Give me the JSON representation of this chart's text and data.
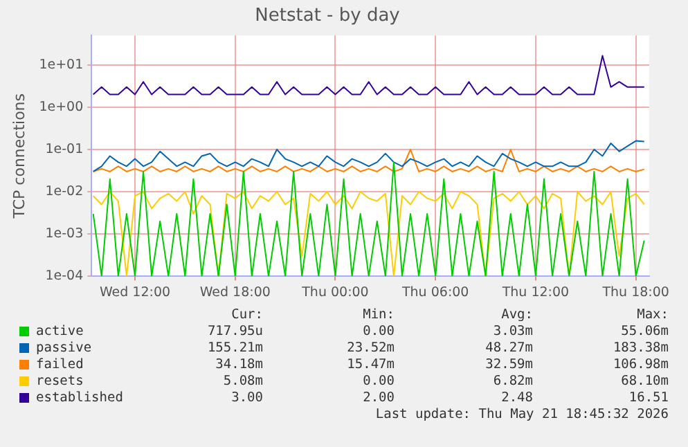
{
  "chart_data": {
    "type": "line",
    "title": "Netstat - by day",
    "ylabel": "TCP connections",
    "log": "y",
    "grid": true,
    "legend": "bottom",
    "xlim": [
      "2026-05-20T09:24",
      "2026-05-21T18:48"
    ],
    "xticks": [
      {
        "value": "2026-05-20T12:00",
        "label": "Wed 12:00"
      },
      {
        "value": "2026-05-20T18:00",
        "label": "Wed 18:00"
      },
      {
        "value": "2026-05-21T00:00",
        "label": "Thu 00:00"
      },
      {
        "value": "2026-05-21T06:00",
        "label": "Thu 06:00"
      },
      {
        "value": "2026-05-21T12:00",
        "label": "Thu 12:00"
      },
      {
        "value": "2026-05-21T18:00",
        "label": "Thu 18:00"
      }
    ],
    "ylim": [
      0.0001,
      50
    ],
    "yticks": [
      {
        "value": 0.0001,
        "label": "1e-04"
      },
      {
        "value": 0.001,
        "label": "1e-03"
      },
      {
        "value": 0.01,
        "label": "1e-02"
      },
      {
        "value": 0.1,
        "label": "1e-01"
      },
      {
        "value": 1,
        "label": "1e+00"
      },
      {
        "value": 10,
        "label": "1e+01"
      }
    ],
    "x": [
      "2026-05-20T09:30",
      "2026-05-20T10:00",
      "2026-05-20T10:30",
      "2026-05-20T11:00",
      "2026-05-20T11:30",
      "2026-05-20T12:00",
      "2026-05-20T12:30",
      "2026-05-20T13:00",
      "2026-05-20T13:30",
      "2026-05-20T14:00",
      "2026-05-20T14:30",
      "2026-05-20T15:00",
      "2026-05-20T15:30",
      "2026-05-20T16:00",
      "2026-05-20T16:30",
      "2026-05-20T17:00",
      "2026-05-20T17:30",
      "2026-05-20T18:00",
      "2026-05-20T18:30",
      "2026-05-20T19:00",
      "2026-05-20T19:30",
      "2026-05-20T20:00",
      "2026-05-20T20:30",
      "2026-05-20T21:00",
      "2026-05-20T21:30",
      "2026-05-20T22:00",
      "2026-05-20T22:30",
      "2026-05-20T23:00",
      "2026-05-20T23:30",
      "2026-05-21T00:00",
      "2026-05-21T00:30",
      "2026-05-21T01:00",
      "2026-05-21T01:30",
      "2026-05-21T02:00",
      "2026-05-21T02:30",
      "2026-05-21T03:00",
      "2026-05-21T03:30",
      "2026-05-21T04:00",
      "2026-05-21T04:30",
      "2026-05-21T05:00",
      "2026-05-21T05:30",
      "2026-05-21T06:00",
      "2026-05-21T06:30",
      "2026-05-21T07:00",
      "2026-05-21T07:30",
      "2026-05-21T08:00",
      "2026-05-21T08:30",
      "2026-05-21T09:00",
      "2026-05-21T09:30",
      "2026-05-21T10:00",
      "2026-05-21T10:30",
      "2026-05-21T11:00",
      "2026-05-21T11:30",
      "2026-05-21T12:00",
      "2026-05-21T12:30",
      "2026-05-21T13:00",
      "2026-05-21T13:30",
      "2026-05-21T14:00",
      "2026-05-21T14:30",
      "2026-05-21T15:00",
      "2026-05-21T15:30",
      "2026-05-21T16:00",
      "2026-05-21T16:30",
      "2026-05-21T17:00",
      "2026-05-21T17:30",
      "2026-05-21T18:00",
      "2026-05-21T18:30"
    ],
    "series": [
      {
        "name": "active",
        "color": "#00cc00",
        "values": [
          0.003,
          0.0001,
          0.02,
          0.0001,
          0.003,
          0.0001,
          0.03,
          0.0001,
          0.002,
          0.0001,
          0.003,
          0.0001,
          0.02,
          0.0001,
          0.003,
          0.0001,
          0.005,
          0.0001,
          0.03,
          0.0001,
          0.003,
          0.0001,
          0.002,
          0.0001,
          0.03,
          0.0001,
          0.003,
          0.0001,
          0.005,
          0.0001,
          0.02,
          0.0001,
          0.003,
          0.0001,
          0.002,
          0.0001,
          0.05,
          0.0001,
          0.003,
          0.0001,
          0.003,
          0.0001,
          0.02,
          0.0001,
          0.003,
          0.0001,
          0.002,
          0.0001,
          0.03,
          0.0001,
          0.003,
          0.0001,
          0.005,
          0.0001,
          0.02,
          0.0001,
          0.003,
          0.0001,
          0.002,
          0.0001,
          0.03,
          0.0001,
          0.003,
          0.0001,
          0.02,
          0.0001,
          0.0007
        ]
      },
      {
        "name": "passive",
        "color": "#0066b3",
        "values": [
          0.03,
          0.04,
          0.07,
          0.05,
          0.04,
          0.06,
          0.04,
          0.05,
          0.09,
          0.06,
          0.04,
          0.05,
          0.04,
          0.07,
          0.08,
          0.05,
          0.04,
          0.05,
          0.04,
          0.06,
          0.05,
          0.04,
          0.1,
          0.06,
          0.05,
          0.04,
          0.05,
          0.04,
          0.07,
          0.05,
          0.04,
          0.06,
          0.05,
          0.04,
          0.05,
          0.08,
          0.05,
          0.04,
          0.06,
          0.05,
          0.04,
          0.05,
          0.06,
          0.04,
          0.05,
          0.04,
          0.07,
          0.05,
          0.04,
          0.08,
          0.06,
          0.05,
          0.04,
          0.05,
          0.04,
          0.04,
          0.05,
          0.04,
          0.04,
          0.05,
          0.1,
          0.07,
          0.14,
          0.09,
          0.12,
          0.16,
          0.155
        ]
      },
      {
        "name": "failed",
        "color": "#ff8000",
        "values": [
          0.03,
          0.035,
          0.03,
          0.04,
          0.03,
          0.035,
          0.03,
          0.04,
          0.03,
          0.035,
          0.03,
          0.04,
          0.03,
          0.035,
          0.03,
          0.04,
          0.03,
          0.035,
          0.03,
          0.04,
          0.03,
          0.035,
          0.03,
          0.04,
          0.03,
          0.035,
          0.03,
          0.04,
          0.03,
          0.035,
          0.03,
          0.04,
          0.03,
          0.035,
          0.03,
          0.04,
          0.03,
          0.035,
          0.1,
          0.03,
          0.035,
          0.03,
          0.04,
          0.03,
          0.035,
          0.03,
          0.04,
          0.03,
          0.035,
          0.03,
          0.1,
          0.03,
          0.035,
          0.03,
          0.04,
          0.03,
          0.035,
          0.03,
          0.04,
          0.03,
          0.035,
          0.03,
          0.04,
          0.03,
          0.035,
          0.03,
          0.034
        ]
      },
      {
        "name": "resets",
        "color": "#ffcc00",
        "values": [
          0.008,
          0.005,
          0.01,
          0.006,
          0.0001,
          0.008,
          0.01,
          0.004,
          0.007,
          0.009,
          0.006,
          0.01,
          0.003,
          0.008,
          0.005,
          0.0001,
          0.009,
          0.007,
          0.01,
          0.004,
          0.008,
          0.006,
          0.01,
          0.005,
          0.007,
          0.0003,
          0.009,
          0.006,
          0.01,
          0.005,
          0.008,
          0.004,
          0.01,
          0.007,
          0.006,
          0.009,
          0.0001,
          0.008,
          0.005,
          0.01,
          0.007,
          0.006,
          0.009,
          0.004,
          0.01,
          0.008,
          0.005,
          0.0001,
          0.007,
          0.009,
          0.006,
          0.01,
          0.005,
          0.008,
          0.004,
          0.009,
          0.007,
          0.0001,
          0.01,
          0.006,
          0.008,
          0.005,
          0.01,
          0.0003,
          0.007,
          0.009,
          0.005
        ]
      },
      {
        "name": "established",
        "color": "#330099",
        "values": [
          2,
          3,
          2,
          2,
          3,
          2,
          4,
          2,
          3,
          2,
          2,
          2,
          3,
          2,
          2,
          3,
          2,
          2,
          2,
          3,
          2,
          2,
          4,
          2,
          3,
          2,
          2,
          2,
          3,
          2,
          3,
          2,
          2,
          4,
          2,
          3,
          2,
          2,
          3,
          2,
          2,
          3,
          2,
          2,
          2,
          4,
          2,
          3,
          2,
          2,
          3,
          2,
          2,
          2,
          3,
          2,
          2,
          3,
          2,
          2,
          2,
          16.51,
          3,
          4,
          3,
          3,
          3
        ]
      }
    ],
    "annotations": [
      "Cur:",
      "Min:",
      "Avg:",
      "Max:",
      "717.95u",
      "0.00",
      "3.03m",
      "55.06m",
      "155.21m",
      "23.52m",
      "48.27m",
      "183.38m",
      "34.18m",
      "15.47m",
      "32.59m",
      "106.98m",
      "5.08m",
      "0.00",
      "6.82m",
      "68.10m",
      "3.00",
      "2.00",
      "2.48",
      "16.51",
      "Last update: Thu May 21 18:45:32 2026"
    ]
  }
}
